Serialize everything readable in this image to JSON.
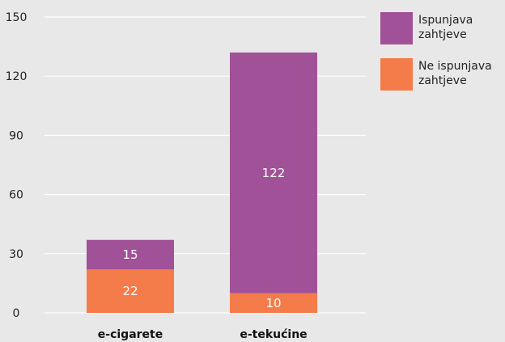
{
  "chart_data": {
    "type": "bar",
    "stacked": true,
    "categories": [
      "e-cigarete",
      "e-tekućine"
    ],
    "series": [
      {
        "name": "Ne ispunjava zahtjeve",
        "values": [
          22,
          10
        ],
        "color": "#f47c4a"
      },
      {
        "name": "Ispunjava zahtjeve",
        "values": [
          15,
          122
        ],
        "color": "#a05197"
      }
    ],
    "ylim": [
      0,
      150
    ],
    "yticks": [
      0,
      30,
      60,
      90,
      120,
      150
    ],
    "grid": true,
    "legend": "top-right",
    "legend_entries": [
      {
        "series": 1,
        "lines": [
          "Ispunjava",
          "zahtjeve"
        ]
      },
      {
        "series": 0,
        "lines": [
          "Ne ispunjava",
          "zahtjeve"
        ]
      }
    ]
  }
}
